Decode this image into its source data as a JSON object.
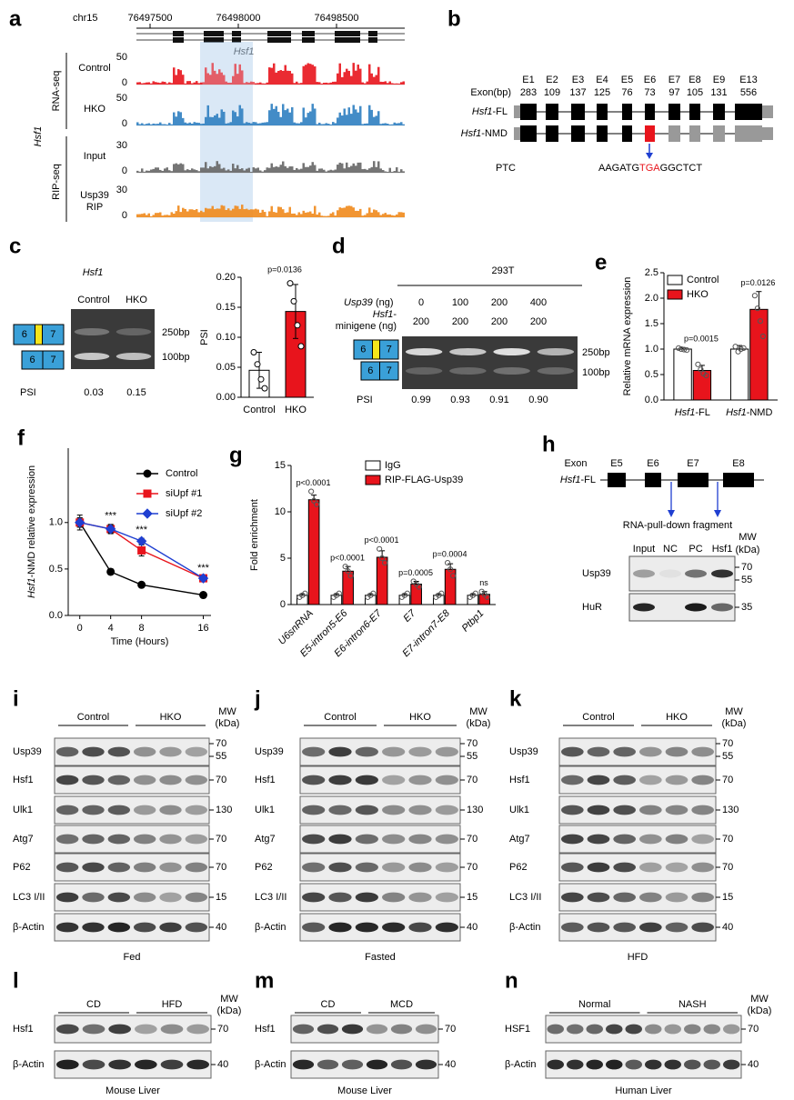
{
  "figure": {
    "a": {
      "label": "a",
      "chrom": "chr15",
      "coords": [
        "76497500",
        "76498000",
        "76498500"
      ],
      "gene": "Hsf1",
      "side": "Hsf1",
      "groups": [
        "RNA-seq",
        "RIP-seq"
      ],
      "tracks": [
        {
          "lines": [
            "Control"
          ],
          "max": "50",
          "min": "0"
        },
        {
          "lines": [
            "HKO"
          ],
          "max": "50",
          "min": "0"
        },
        {
          "lines": [
            "Input"
          ],
          "max": "30",
          "min": "0"
        },
        {
          "lines": [
            "Usp39",
            "RIP"
          ],
          "max": "30",
          "min": "0"
        }
      ]
    },
    "b": {
      "label": "b",
      "exon_header": "Exon(bp)",
      "exons": [
        {
          "name": "E1",
          "bp": "283"
        },
        {
          "name": "E2",
          "bp": "109"
        },
        {
          "name": "E3",
          "bp": "137"
        },
        {
          "name": "E4",
          "bp": "125"
        },
        {
          "name": "E5",
          "bp": "76"
        },
        {
          "name": "E6",
          "bp": "73"
        },
        {
          "name": "E7",
          "bp": "97"
        },
        {
          "name": "E8",
          "bp": "105"
        },
        {
          "name": "E9",
          "bp": "131"
        },
        {
          "name": "E13",
          "bp": "556"
        }
      ],
      "isoforms": [
        "Hsf1-FL",
        "Hsf1-NMD"
      ],
      "ptc": "PTC",
      "sequence": [
        "AAGATG",
        "TGA",
        "GGCTCT"
      ]
    },
    "c": {
      "label": "c",
      "gene": "Hsf1",
      "lanes": [
        "Control",
        "HKO"
      ],
      "sizes": [
        "250bp",
        "100bp"
      ],
      "exons": [
        "6",
        "7"
      ],
      "psi_label": "PSI",
      "psi": [
        "0.03",
        "0.15"
      ]
    },
    "d": {
      "label": "d",
      "cell": "293T",
      "usp39": [
        "Usp39",
        "(ng)"
      ],
      "usp39_amounts": [
        "0",
        "100",
        "200",
        "400"
      ],
      "minigene": [
        "Hsf1-",
        "minigene (ng)"
      ],
      "minigene_amounts": [
        "200",
        "200",
        "200",
        "200"
      ],
      "sizes": [
        "250bp",
        "100bp"
      ],
      "exons": [
        "6",
        "7"
      ],
      "psi_label": "PSI",
      "psi": [
        "0.99",
        "0.93",
        "0.91",
        "0.90"
      ]
    },
    "h": {
      "label": "h",
      "exon_header": "Exon",
      "exons": [
        "E5",
        "E6",
        "E7",
        "E8"
      ],
      "isoform": "Hsf1-FL",
      "fragment": "RNA-pull-down fragment",
      "mw_header": [
        "MW",
        "(kDa)"
      ],
      "lanes": [
        "Input",
        "NC",
        "PC",
        "Hsf1"
      ],
      "rows": [
        {
          "name": "Usp39",
          "mw": [
            "70",
            "55"
          ]
        },
        {
          "name": "HuR",
          "mw": [
            "35"
          ]
        }
      ]
    },
    "blots": [
      {
        "label": "i",
        "groups": [
          "Control",
          "HKO"
        ],
        "mw_header": [
          "MW",
          "(kDa)"
        ],
        "rows": [
          {
            "name": "Usp39",
            "mw": [
              "70",
              "55"
            ]
          },
          {
            "name": "Hsf1",
            "mw": [
              "70"
            ]
          },
          {
            "name": "Ulk1",
            "mw": [
              "130"
            ]
          },
          {
            "name": "Atg7",
            "mw": [
              "70"
            ]
          },
          {
            "name": "P62",
            "mw": [
              "70"
            ]
          },
          {
            "name": "LC3 I/II",
            "mw": [
              "15"
            ]
          },
          {
            "name": "β-Actin",
            "mw": [
              "40"
            ]
          }
        ],
        "caption": "Fed"
      },
      {
        "label": "j",
        "groups": [
          "Control",
          "HKO"
        ],
        "mw_header": [
          "MW",
          "(kDa)"
        ],
        "rows": [
          {
            "name": "Usp39",
            "mw": [
              "70",
              "55"
            ]
          },
          {
            "name": "Hsf1",
            "mw": [
              "70"
            ]
          },
          {
            "name": "Ulk1",
            "mw": [
              "130"
            ]
          },
          {
            "name": "Atg7",
            "mw": [
              "70"
            ]
          },
          {
            "name": "P62",
            "mw": [
              "70"
            ]
          },
          {
            "name": "LC3 I/II",
            "mw": [
              "15"
            ]
          },
          {
            "name": "β-Actin",
            "mw": [
              "40"
            ]
          }
        ],
        "caption": "Fasted"
      },
      {
        "label": "k",
        "groups": [
          "Control",
          "HKO"
        ],
        "mw_header": [
          "MW",
          "(kDa)"
        ],
        "rows": [
          {
            "name": "Usp39",
            "mw": [
              "70",
              "55"
            ]
          },
          {
            "name": "Hsf1",
            "mw": [
              "70"
            ]
          },
          {
            "name": "Ulk1",
            "mw": [
              "130"
            ]
          },
          {
            "name": "Atg7",
            "mw": [
              "70"
            ]
          },
          {
            "name": "P62",
            "mw": [
              "70"
            ]
          },
          {
            "name": "LC3 I/II",
            "mw": [
              "15"
            ]
          },
          {
            "name": "β-Actin",
            "mw": [
              "40"
            ]
          }
        ],
        "caption": "HFD"
      }
    ],
    "liver_blots": [
      {
        "label": "l",
        "groups": [
          "CD",
          "HFD"
        ],
        "mw_header": [
          "MW",
          "(kDa)"
        ],
        "rows": [
          {
            "name": "Hsf1",
            "mw": [
              "70"
            ]
          },
          {
            "name": "β-Actin",
            "mw": [
              "40"
            ]
          }
        ],
        "caption": "Mouse Liver"
      },
      {
        "label": "m",
        "groups": [
          "CD",
          "MCD"
        ],
        "rows": [
          {
            "name": "Hsf1",
            "mw": [
              "70"
            ]
          },
          {
            "name": "β-Actin",
            "mw": [
              "40"
            ]
          }
        ],
        "caption": "Mouse Liver"
      },
      {
        "label": "n",
        "groups": [
          "Normal",
          "NASH"
        ],
        "mw_header": [
          "MW",
          "(kDa)"
        ],
        "rows": [
          {
            "name": "HSF1",
            "mw": [
              "70"
            ]
          },
          {
            "name": "β-Actin",
            "mw": [
              "40"
            ]
          }
        ],
        "caption": "Human Liver"
      }
    ]
  },
  "chart_data": [
    {
      "type": "bar",
      "ylabel": "PSI",
      "categories": [
        "Control",
        "HKO"
      ],
      "values": [
        0.045,
        0.143
      ],
      "errors": [
        0.03,
        0.045
      ],
      "points": [
        [
          0.075,
          0.055,
          0.03,
          0.015
        ],
        [
          0.19,
          0.16,
          0.12,
          0.085
        ]
      ],
      "colors": [
        "#ffffff",
        "#e8141c"
      ],
      "ylim": [
        0,
        0.2
      ],
      "yticks": [
        {
          "value": 0,
          "label": "0.00"
        },
        0.05,
        {
          "value": 0.1,
          "label": "0.10"
        },
        0.15,
        {
          "value": 0.2,
          "label": "0.20"
        }
      ],
      "annotations": [
        "p=0.0136"
      ]
    },
    {
      "type": "grouped_bar",
      "label": "e",
      "ylabel": "Relative mRNA expression",
      "categories": [
        "Hsf1-FL",
        "Hsf1-NMD"
      ],
      "series": [
        {
          "name": "Control",
          "color": "#ffffff",
          "values": [
            1.0,
            1.0
          ],
          "errors": [
            0.03,
            0.07
          ],
          "points": [
            [
              1.02,
              1.0,
              0.99,
              0.98
            ],
            [
              1.05,
              0.95,
              1.0,
              1.02
            ]
          ]
        },
        {
          "name": "HKO",
          "color": "#e8141c",
          "values": [
            0.58,
            1.78
          ],
          "errors": [
            0.1,
            0.35
          ],
          "points": [
            [
              0.7,
              0.6,
              0.52,
              0.48
            ],
            [
              2.05,
              1.8,
              1.55,
              1.25
            ]
          ]
        }
      ],
      "ylim": [
        0,
        2.5
      ],
      "yticks": [
        {
          "value": 0,
          "label": "0.0"
        },
        0.5,
        {
          "value": 1,
          "label": "1.0"
        },
        1.5,
        {
          "value": 2,
          "label": "2.0"
        },
        2.5
      ],
      "annotations": [
        "p=0.0015",
        "p=0.0126"
      ],
      "legend": "upper left"
    },
    {
      "type": "line",
      "label": "f",
      "xlabel": "Time (Hours)",
      "ylabel": "Hsf1-NMD relative expression",
      "x": [
        0,
        4,
        8,
        16
      ],
      "xlim": [
        -1.5,
        17
      ],
      "xticks": [
        0,
        4,
        8,
        16
      ],
      "ylim": [
        0,
        1.8
      ],
      "yticks": [
        {
          "value": 0,
          "label": "0.0"
        },
        0.5,
        {
          "value": 1,
          "label": "1.0"
        }
      ],
      "series": [
        {
          "name": "Control",
          "color": "#000000",
          "marker": "circle",
          "values": [
            1.0,
            0.47,
            0.33,
            0.22
          ],
          "errors": [
            0.05,
            0.03,
            0.02,
            0.01
          ]
        },
        {
          "name": "siUpf #1",
          "color": "#e8141c",
          "marker": "square",
          "values": [
            1.0,
            0.93,
            0.7,
            0.4
          ],
          "errors": [
            0.08,
            0.05,
            0.06,
            0.02
          ]
        },
        {
          "name": "siUpf #2",
          "color": "#1f3fd1",
          "marker": "diamond",
          "values": [
            1.0,
            0.93,
            0.8,
            0.4
          ],
          "errors": [
            0.05,
            0.04,
            0.03,
            0.02
          ]
        }
      ],
      "annotations": [
        "***",
        "***",
        "***"
      ],
      "legend": "upper right"
    },
    {
      "type": "grouped_bar",
      "label": "g",
      "ylabel": "Fold enrichment",
      "categories": [
        "U6snRNA",
        "E5-intron5-E6",
        "E6-intron6-E7",
        "E7",
        "E7-intron7-E8",
        "Ptbp1"
      ],
      "series": [
        {
          "name": "IgG",
          "color": "#ffffff",
          "values": [
            1,
            1,
            1,
            1,
            1,
            1
          ],
          "errors": [
            0.15,
            0.15,
            0.15,
            0.15,
            0.15,
            0.15
          ],
          "points": [
            [
              0.8,
              1.0,
              1.2
            ],
            [
              0.8,
              1.0,
              1.2
            ],
            [
              0.8,
              1.0,
              1.2
            ],
            [
              0.8,
              1.0,
              1.2
            ],
            [
              0.8,
              1.0,
              1.2
            ],
            [
              0.8,
              1.0,
              1.2
            ]
          ]
        },
        {
          "name": "RIP-FLAG-Usp39",
          "color": "#e8141c",
          "values": [
            11.3,
            3.6,
            5.1,
            2.2,
            3.8,
            1.1
          ],
          "errors": [
            0.5,
            0.5,
            0.7,
            0.3,
            0.6,
            0.3
          ],
          "points": [
            [
              12.2,
              11.2,
              10.8
            ],
            [
              4.1,
              3.6,
              3.1
            ],
            [
              6.0,
              5.0,
              4.5
            ],
            [
              2.5,
              2.2,
              1.9
            ],
            [
              4.5,
              3.8,
              3.1
            ],
            [
              1.4,
              1.1,
              0.8
            ]
          ]
        }
      ],
      "ylim": [
        0,
        15
      ],
      "yticks": [
        0,
        5,
        10,
        15
      ],
      "annotations": [
        "p<0.0001",
        "p<0.0001",
        "p<0.0001",
        "p=0.0005",
        "p=0.0004",
        "ns"
      ],
      "legend": "upper left"
    }
  ]
}
